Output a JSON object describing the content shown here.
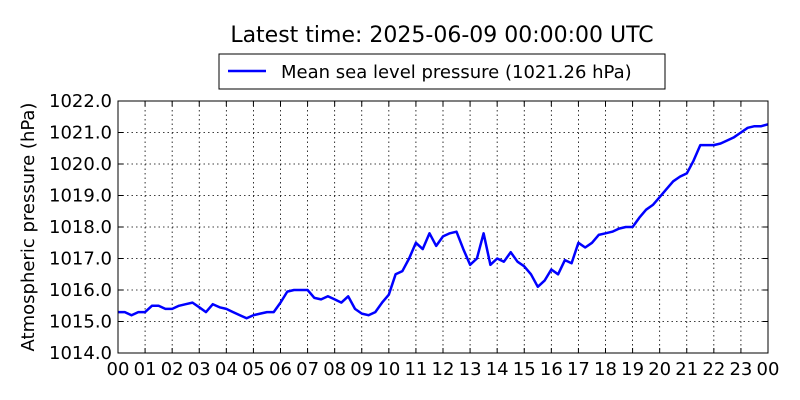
{
  "chart_data": {
    "type": "line",
    "title": "Latest time: 2025-06-09 00:00:00 UTC",
    "xlabel": "",
    "ylabel": "Atmospheric pressure (hPa)",
    "xlim": [
      0,
      24
    ],
    "ylim": [
      1014.0,
      1022.0
    ],
    "grid": true,
    "legend_placement": "top-center, above plot",
    "series_color": "#0000ff",
    "x_tick_labels": [
      "00",
      "01",
      "02",
      "03",
      "04",
      "05",
      "06",
      "07",
      "08",
      "09",
      "10",
      "11",
      "12",
      "13",
      "14",
      "15",
      "16",
      "17",
      "18",
      "19",
      "20",
      "21",
      "22",
      "23",
      "00"
    ],
    "y_tick_labels": [
      "1014.0",
      "1015.0",
      "1016.0",
      "1017.0",
      "1018.0",
      "1019.0",
      "1020.0",
      "1021.0",
      "1022.0"
    ],
    "series": [
      {
        "name": "Mean sea level pressure (1021.26 hPa)",
        "x": [
          0,
          0.25,
          0.5,
          0.75,
          1,
          1.25,
          1.5,
          1.75,
          2,
          2.25,
          2.5,
          2.75,
          3,
          3.25,
          3.5,
          3.75,
          4,
          4.25,
          4.5,
          4.75,
          5,
          5.25,
          5.5,
          5.75,
          6,
          6.25,
          6.5,
          6.75,
          7,
          7.25,
          7.5,
          7.75,
          8,
          8.25,
          8.5,
          8.75,
          9,
          9.25,
          9.5,
          9.75,
          10,
          10.25,
          10.5,
          10.75,
          11,
          11.25,
          11.5,
          11.75,
          12,
          12.25,
          12.5,
          12.75,
          13,
          13.25,
          13.5,
          13.75,
          14,
          14.25,
          14.5,
          14.75,
          15,
          15.25,
          15.5,
          15.75,
          16,
          16.25,
          16.5,
          16.75,
          17,
          17.25,
          17.5,
          17.75,
          18,
          18.25,
          18.5,
          18.75,
          19,
          19.25,
          19.5,
          19.75,
          20,
          20.25,
          20.5,
          20.75,
          21,
          21.25,
          21.5,
          21.75,
          22,
          22.25,
          22.5,
          22.75,
          23,
          23.25,
          23.5,
          23.75,
          24
        ],
        "values": [
          1015.3,
          1015.3,
          1015.2,
          1015.3,
          1015.3,
          1015.5,
          1015.5,
          1015.4,
          1015.4,
          1015.5,
          1015.55,
          1015.6,
          1015.45,
          1015.3,
          1015.55,
          1015.45,
          1015.4,
          1015.3,
          1015.2,
          1015.1,
          1015.2,
          1015.25,
          1015.3,
          1015.3,
          1015.6,
          1015.95,
          1016.0,
          1016.0,
          1016.0,
          1015.75,
          1015.7,
          1015.8,
          1015.7,
          1015.6,
          1015.8,
          1015.4,
          1015.25,
          1015.2,
          1015.3,
          1015.6,
          1015.85,
          1016.5,
          1016.6,
          1017.0,
          1017.5,
          1017.3,
          1017.8,
          1017.4,
          1017.7,
          1017.8,
          1017.85,
          1017.3,
          1016.8,
          1017.0,
          1017.8,
          1016.8,
          1017.0,
          1016.9,
          1017.2,
          1016.9,
          1016.75,
          1016.5,
          1016.1,
          1016.3,
          1016.65,
          1016.5,
          1016.95,
          1016.85,
          1017.5,
          1017.35,
          1017.5,
          1017.75,
          1017.8,
          1017.85,
          1017.95,
          1018.0,
          1018.0,
          1018.3,
          1018.55,
          1018.7,
          1018.95,
          1019.2,
          1019.45,
          1019.6,
          1019.7,
          1020.1,
          1020.6,
          1020.6,
          1020.6,
          1020.65,
          1020.75,
          1020.85,
          1021.0,
          1021.15,
          1021.2,
          1021.2,
          1021.26
        ]
      }
    ]
  }
}
